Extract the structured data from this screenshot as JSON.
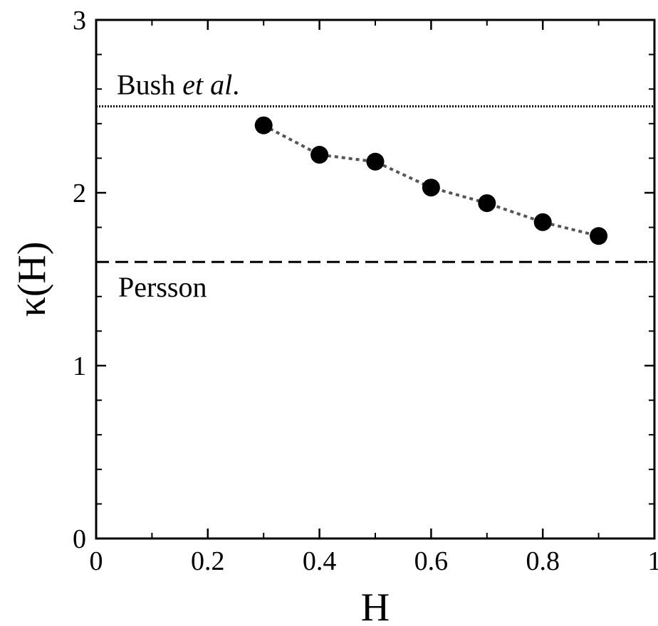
{
  "chart_data": {
    "type": "scatter",
    "title": "",
    "xlabel": "H",
    "ylabel": "κ(H)",
    "xlim": [
      0,
      1
    ],
    "ylim": [
      0,
      3
    ],
    "x_ticks": [
      {
        "value": 0,
        "label": "0"
      },
      {
        "value": 0.2,
        "label": "0.2"
      },
      {
        "value": 0.4,
        "label": "0.4"
      },
      {
        "value": 0.6,
        "label": "0.6"
      },
      {
        "value": 0.8,
        "label": "0.8"
      },
      {
        "value": 1,
        "label": "1"
      }
    ],
    "x_minor_ticks": [
      0.1,
      0.3,
      0.5,
      0.7,
      0.9
    ],
    "y_ticks": [
      {
        "value": 0,
        "label": "0"
      },
      {
        "value": 1,
        "label": "1"
      },
      {
        "value": 2,
        "label": "2"
      },
      {
        "value": 3,
        "label": "3"
      }
    ],
    "y_minor_ticks": [
      0.2,
      0.4,
      0.6,
      0.8,
      1.2,
      1.4,
      1.6,
      1.8,
      2.2,
      2.4,
      2.6,
      2.8
    ],
    "grid": false,
    "series": [
      {
        "name": "",
        "style": "dotted-line-with-filled-circles",
        "color": "#000000",
        "line_color": "#555555",
        "x": [
          0.3,
          0.4,
          0.5,
          0.6,
          0.7,
          0.8,
          0.9
        ],
        "y": [
          2.39,
          2.22,
          2.18,
          2.03,
          1.94,
          1.83,
          1.75
        ]
      }
    ],
    "reference_lines": [
      {
        "label_prefix": "Bush ",
        "label_italic": "et al",
        "label_suffix": ".",
        "y": 2.5,
        "style": "dotted",
        "color": "#000000"
      },
      {
        "label": "Persson",
        "y": 1.6,
        "style": "dashed",
        "color": "#000000"
      }
    ]
  }
}
